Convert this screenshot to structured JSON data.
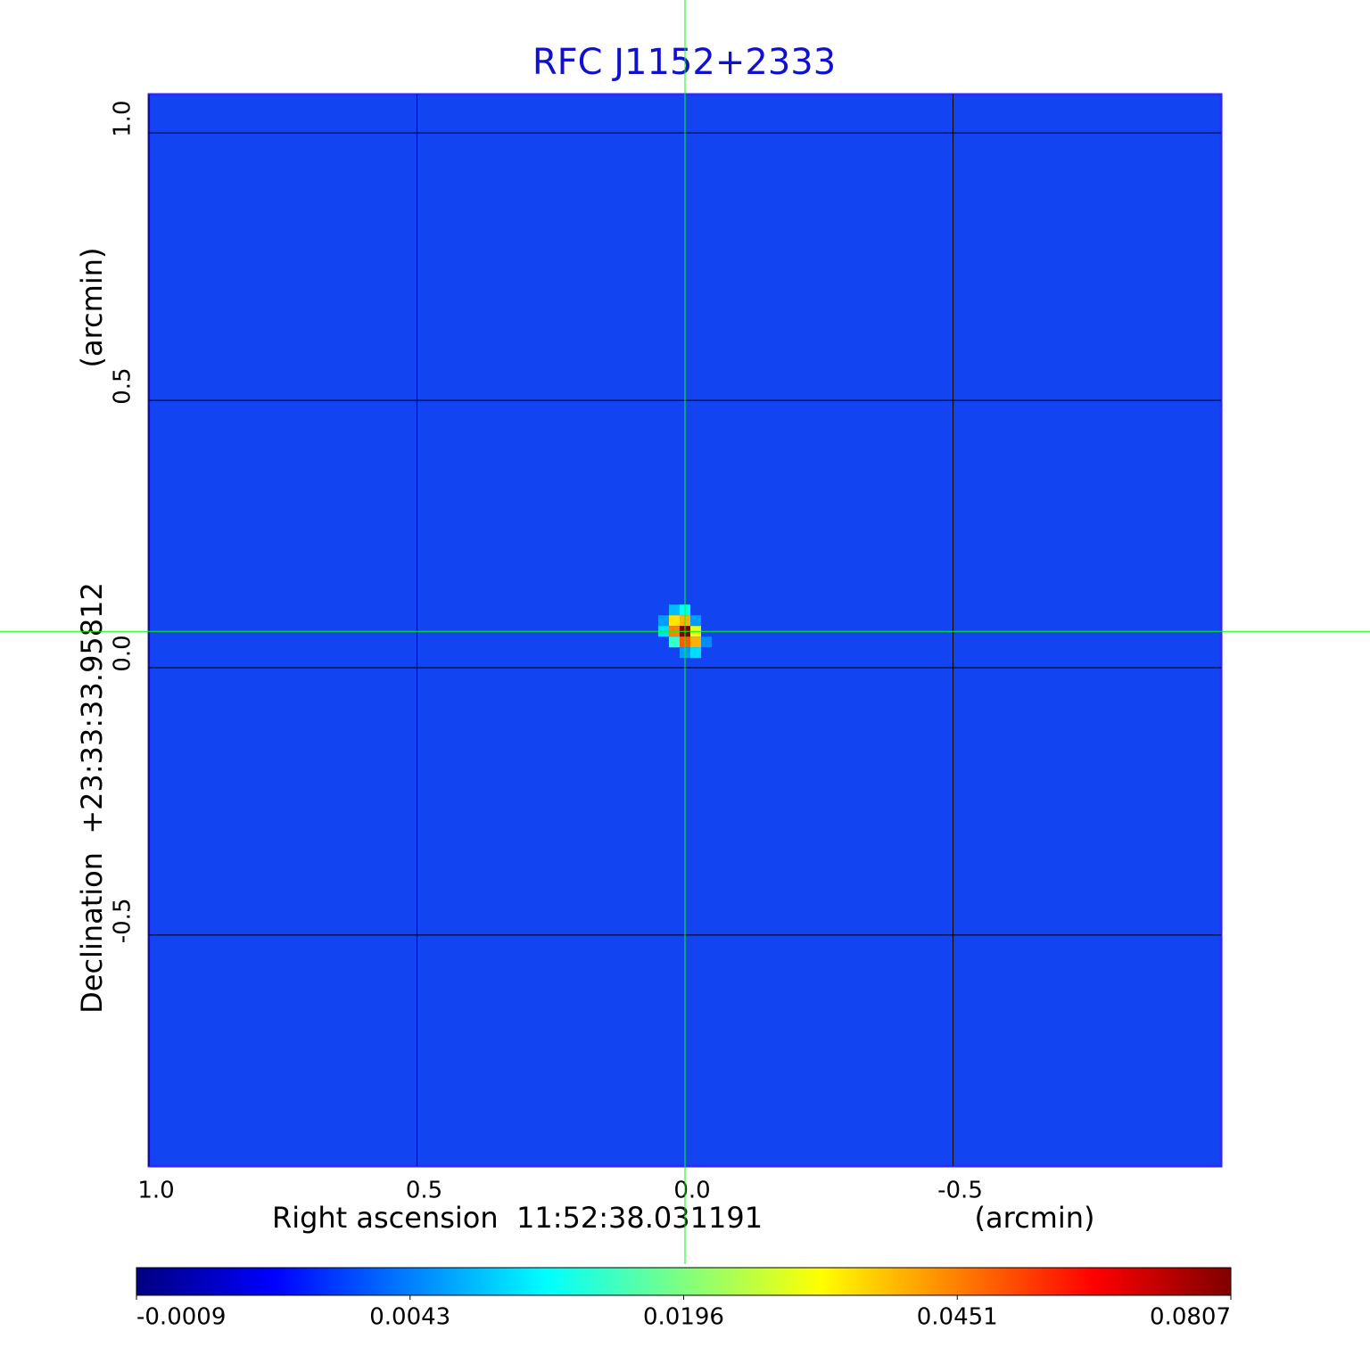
{
  "chart_data": {
    "type": "heatmap",
    "title": "RFC J1152+2333",
    "x_label": "Right ascension  11:52:38.031191",
    "x_unit": "(arcmin)",
    "y_label": "Declination  +23:33:33.95812",
    "y_unit": "(arcmin)",
    "xlim": [
      1.0,
      -1.0
    ],
    "ylim": [
      -0.932,
      1.072
    ],
    "xticks": [
      {
        "value": 1,
        "label": "1.0"
      },
      0.5,
      {
        "value": 0,
        "label": "0.0"
      },
      -0.5
    ],
    "yticks": [
      {
        "value": 1,
        "label": "1.0"
      },
      0.5,
      {
        "value": 0,
        "label": "0.0"
      },
      -0.5
    ],
    "grid": true,
    "colormap": "jet",
    "pixel_size": 0.02,
    "pixels": {
      "x": [
        0.02,
        0.0,
        0.04,
        0.02,
        0.0,
        -0.02,
        0.04,
        0.02,
        0.0,
        -0.02,
        0.02,
        0.0,
        -0.02,
        -0.04,
        0.0,
        -0.02
      ],
      "y": [
        0.108,
        0.108,
        0.088,
        0.088,
        0.088,
        0.088,
        0.068,
        0.068,
        0.068,
        0.068,
        0.048,
        0.048,
        0.048,
        0.048,
        0.028,
        0.028
      ],
      "values": [
        0.008,
        0.012,
        0.006,
        0.035,
        0.04,
        0.006,
        0.01,
        0.045,
        0.0807,
        0.03,
        0.015,
        0.05,
        0.04,
        0.005,
        0.006,
        0.01
      ]
    },
    "crosshair": {
      "x": 0.0,
      "y": 0.068,
      "color": "#00ff00"
    },
    "colorbar": {
      "scale": "equalized",
      "ticks": [
        -0.0009,
        0.0043,
        0.0196,
        0.0451,
        0.0807
      ]
    }
  }
}
